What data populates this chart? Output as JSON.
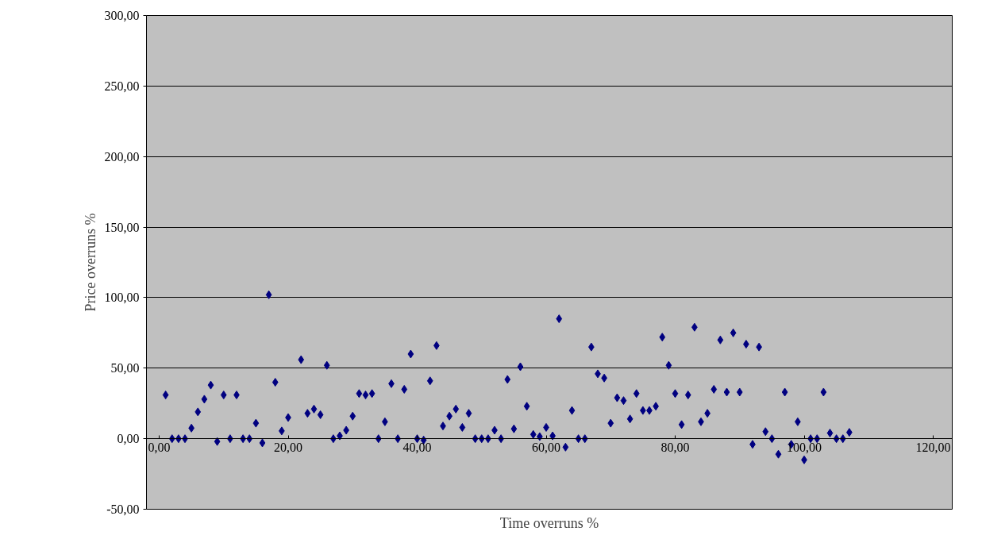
{
  "chart_data": {
    "type": "scatter",
    "xlabel": "Time overruns %",
    "ylabel": "Price overruns %",
    "xlim": [
      0,
      120
    ],
    "ylim": [
      -50,
      300
    ],
    "xticks": [
      {
        "value": 0,
        "label": "0,00"
      },
      {
        "value": 20,
        "label": "20,00"
      },
      {
        "value": 40,
        "label": "40,00"
      },
      {
        "value": 60,
        "label": "60,00"
      },
      {
        "value": 80,
        "label": "80,00"
      },
      {
        "value": 100,
        "label": "100,00"
      },
      {
        "value": 120,
        "label": "120,00"
      }
    ],
    "yticks": [
      {
        "value": -50,
        "label": "-50,00"
      },
      {
        "value": 0,
        "label": "0,00"
      },
      {
        "value": 50,
        "label": "50,00"
      },
      {
        "value": 100,
        "label": "100,00"
      },
      {
        "value": 150,
        "label": "150,00"
      },
      {
        "value": 200,
        "label": "200,00"
      },
      {
        "value": 250,
        "label": "250,00"
      },
      {
        "value": 300,
        "label": "300,00"
      }
    ],
    "grid": "y",
    "marker": "diamond",
    "series": [
      {
        "color": "#000080",
        "x": [
          1,
          2,
          3,
          4,
          5,
          6,
          7,
          8,
          9,
          10,
          11,
          12,
          13,
          14,
          15,
          16,
          17,
          18,
          19,
          20,
          22,
          23,
          24,
          25,
          26,
          27,
          28,
          29,
          30,
          31,
          32,
          33,
          34,
          35,
          36,
          37,
          38,
          39,
          40,
          41,
          42,
          43,
          44,
          45,
          46,
          47,
          48,
          49,
          50,
          51,
          52,
          53,
          54,
          55,
          56,
          57,
          58,
          59,
          60,
          61,
          62,
          63,
          64,
          65,
          66,
          67,
          68,
          69,
          70,
          71,
          72,
          73,
          74,
          75,
          76,
          77,
          78,
          79,
          80,
          81,
          82,
          83,
          84,
          85,
          86,
          87,
          88,
          89,
          90,
          91,
          92,
          93,
          94,
          95,
          96,
          97,
          98,
          99,
          100,
          101,
          102,
          103,
          104,
          105,
          106,
          107
        ],
        "values": [
          31,
          0,
          0,
          0,
          7.5,
          19,
          28,
          38,
          -2,
          31,
          0,
          31,
          0,
          0,
          11,
          -3,
          102,
          40,
          5.5,
          15,
          56,
          18,
          21,
          17,
          52,
          0,
          2,
          6,
          16,
          32,
          31,
          32,
          0,
          12,
          39,
          0,
          35,
          60,
          0,
          -1,
          41,
          66,
          9,
          16,
          21,
          8,
          18,
          0,
          0,
          0,
          6,
          0,
          42,
          7,
          51,
          23,
          3,
          1.5,
          8,
          2,
          85,
          -6,
          20,
          0,
          0,
          65,
          46,
          43,
          11,
          29,
          27,
          14,
          32,
          20,
          20,
          23,
          72,
          52,
          32,
          10,
          31,
          79,
          12,
          18,
          35,
          70,
          33,
          75,
          33,
          67,
          -4,
          65,
          5,
          0,
          -11,
          33,
          -4,
          12,
          -15,
          0,
          0,
          33,
          4,
          0,
          0,
          4.5
        ]
      }
    ]
  }
}
